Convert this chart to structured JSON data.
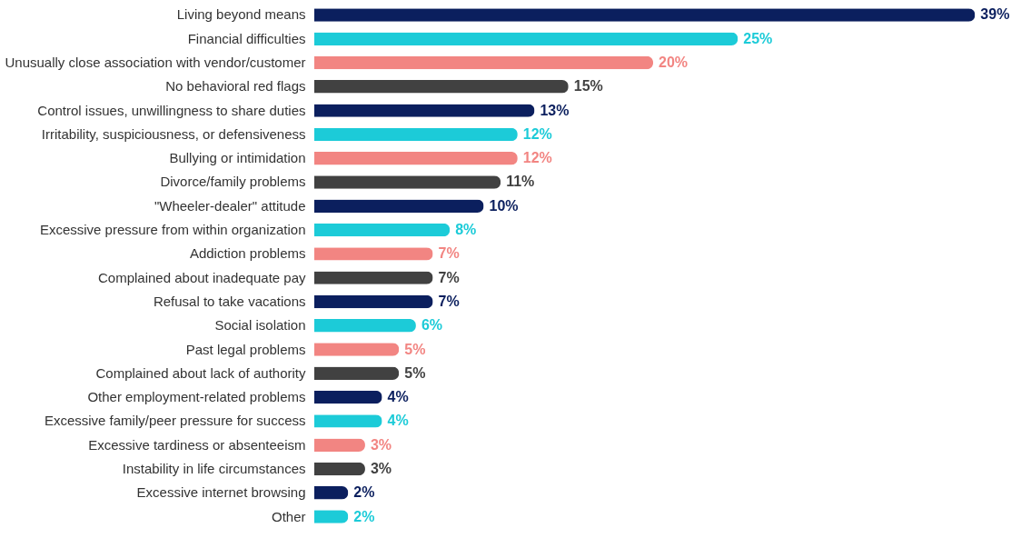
{
  "chart_data": {
    "type": "bar",
    "orientation": "horizontal",
    "categories": [
      "Living beyond means",
      "Financial difficulties",
      "Unusually close association with vendor/customer",
      "No behavioral red flags",
      "Control issues, unwillingness to share duties",
      "Irritability, suspiciousness, or defensiveness",
      "Bullying or intimidation",
      "Divorce/family problems",
      "\"Wheeler-dealer\" attitude",
      "Excessive pressure from within organization",
      "Addiction problems",
      "Complained about inadequate pay",
      "Refusal to take vacations",
      "Social isolation",
      "Past legal problems",
      "Complained about lack of authority",
      "Other employment-related problems",
      "Excessive family/peer pressure for success",
      "Excessive tardiness or absenteeism",
      "Instability in life circumstances",
      "Excessive internet browsing",
      "Other"
    ],
    "values": [
      39,
      25,
      20,
      15,
      13,
      12,
      12,
      11,
      10,
      8,
      7,
      7,
      7,
      6,
      5,
      5,
      4,
      4,
      3,
      3,
      2,
      2
    ],
    "value_labels": [
      "39%",
      "25%",
      "20%",
      "15%",
      "13%",
      "12%",
      "12%",
      "11%",
      "10%",
      "8%",
      "7%",
      "7%",
      "7%",
      "6%",
      "5%",
      "5%",
      "4%",
      "4%",
      "3%",
      "3%",
      "2%",
      "2%"
    ],
    "colors": [
      "#0b1f5e",
      "#1ccbd8",
      "#f28582",
      "#414141",
      "#0b1f5e",
      "#1ccbd8",
      "#f28582",
      "#414141",
      "#0b1f5e",
      "#1ccbd8",
      "#f28582",
      "#414141",
      "#0b1f5e",
      "#1ccbd8",
      "#f28582",
      "#414141",
      "#0b1f5e",
      "#1ccbd8",
      "#f28582",
      "#414141",
      "#0b1f5e",
      "#1ccbd8"
    ],
    "legend": false
  }
}
